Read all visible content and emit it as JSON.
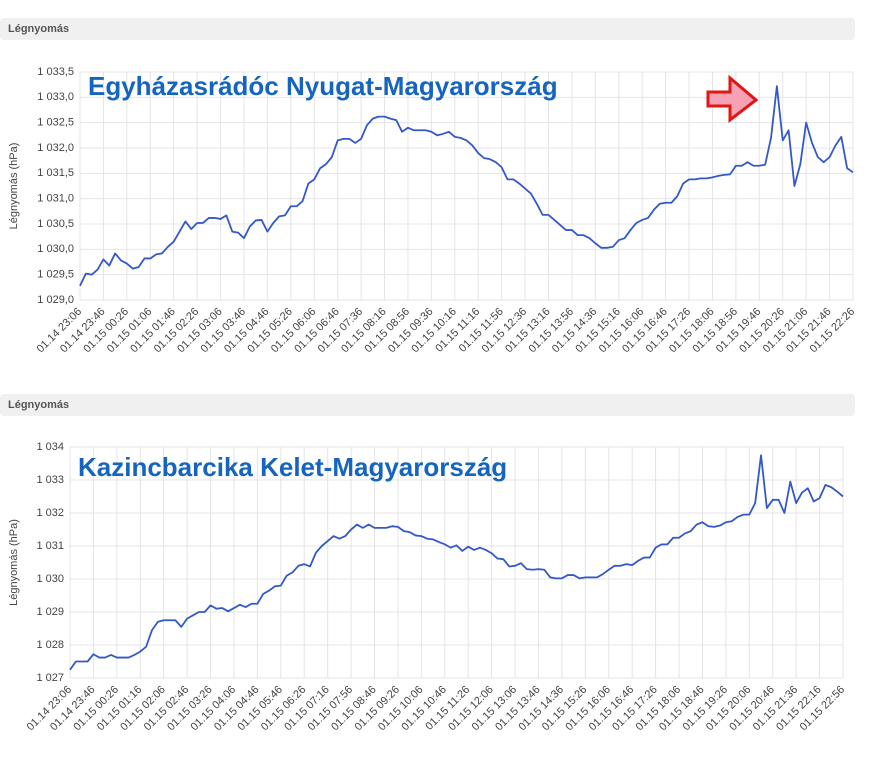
{
  "chart_data": [
    {
      "type": "line",
      "header": "Légnyomás",
      "title": "Egyházasrádóc Nyugat-Magyarország",
      "y_label": "Légnyomás (hPa)",
      "grid": true,
      "ylim": [
        1029.0,
        1033.5
      ],
      "yticks": [
        {
          "value": 1029.0,
          "label": "1 029,0"
        },
        {
          "value": 1029.5,
          "label": "1 029,5"
        },
        {
          "value": 1030.0,
          "label": "1 030,0"
        },
        {
          "value": 1030.5,
          "label": "1 030,5"
        },
        {
          "value": 1031.0,
          "label": "1 031,0"
        },
        {
          "value": 1031.5,
          "label": "1 031,5"
        },
        {
          "value": 1032.0,
          "label": "1 032,0"
        },
        {
          "value": 1032.5,
          "label": "1 032,5"
        },
        {
          "value": 1033.0,
          "label": "1 033,0"
        },
        {
          "value": 1033.5,
          "label": "1 033,5"
        }
      ],
      "categories": [
        "01.14 23:06",
        null,
        null,
        null,
        "01.14 23:46",
        null,
        null,
        null,
        "01.15 00:26",
        null,
        null,
        null,
        "01.15 01:06",
        null,
        null,
        null,
        "01.15 01:46",
        null,
        null,
        null,
        "01.15 02:26",
        null,
        null,
        null,
        "01.15 03:06",
        null,
        null,
        null,
        "01.15 03:46",
        null,
        null,
        null,
        "01.15 04:46",
        null,
        null,
        null,
        "01.15 05:26",
        null,
        null,
        null,
        "01.15 06:06",
        null,
        null,
        null,
        "01.15 06:46",
        null,
        null,
        null,
        "01.15 07:36",
        null,
        null,
        null,
        "01.15 08:16",
        null,
        null,
        null,
        "01.15 08:56",
        null,
        null,
        null,
        "01.15 09:36",
        null,
        null,
        null,
        "01.15 10:16",
        null,
        null,
        null,
        "01.15 11:16",
        null,
        null,
        null,
        "01.15 11:56",
        null,
        null,
        null,
        "01.15 12:36",
        null,
        null,
        null,
        "01.15 13:16",
        null,
        null,
        null,
        "01.15 13:56",
        null,
        null,
        null,
        "01.15 14:36",
        null,
        null,
        null,
        "01.15 15:16",
        null,
        null,
        null,
        "01.15 16:06",
        null,
        null,
        null,
        "01.15 16:46",
        null,
        null,
        null,
        "01.15 17:26",
        null,
        null,
        null,
        "01.15 18:06",
        null,
        null,
        null,
        "01.15 18:56",
        null,
        null,
        null,
        "01.15 19:46",
        null,
        null,
        null,
        "01.15 20:26",
        null,
        null,
        null,
        "01.15 21:06",
        null,
        null,
        null,
        "01.15 21:46",
        null,
        null,
        null,
        "01.15 22:26"
      ],
      "series": [
        {
          "color": "#3358c9",
          "values": [
            1029.28,
            1029.52,
            1029.5,
            1029.6,
            1029.8,
            1029.68,
            1029.92,
            1029.78,
            1029.72,
            1029.62,
            1029.65,
            1029.82,
            1029.82,
            1029.9,
            1029.92,
            1030.05,
            1030.15,
            1030.35,
            1030.55,
            1030.4,
            1030.52,
            1030.52,
            1030.62,
            1030.62,
            1030.6,
            1030.67,
            1030.35,
            1030.33,
            1030.22,
            1030.45,
            1030.57,
            1030.58,
            1030.35,
            1030.52,
            1030.65,
            1030.67,
            1030.85,
            1030.85,
            1030.95,
            1031.3,
            1031.38,
            1031.6,
            1031.68,
            1031.82,
            1032.15,
            1032.18,
            1032.18,
            1032.1,
            1032.18,
            1032.45,
            1032.58,
            1032.62,
            1032.62,
            1032.58,
            1032.55,
            1032.32,
            1032.4,
            1032.35,
            1032.35,
            1032.35,
            1032.32,
            1032.25,
            1032.28,
            1032.32,
            1032.22,
            1032.2,
            1032.15,
            1032.05,
            1031.9,
            1031.8,
            1031.78,
            1031.72,
            1031.62,
            1031.38,
            1031.38,
            1031.3,
            1031.2,
            1031.1,
            1030.9,
            1030.68,
            1030.68,
            1030.58,
            1030.48,
            1030.38,
            1030.38,
            1030.28,
            1030.28,
            1030.22,
            1030.12,
            1030.03,
            1030.03,
            1030.05,
            1030.18,
            1030.22,
            1030.38,
            1030.52,
            1030.58,
            1030.62,
            1030.78,
            1030.9,
            1030.92,
            1030.92,
            1031.05,
            1031.3,
            1031.38,
            1031.38,
            1031.4,
            1031.4,
            1031.42,
            1031.45,
            1031.47,
            1031.48,
            1031.65,
            1031.65,
            1031.72,
            1031.65,
            1031.65,
            1031.67,
            1032.2,
            1033.22,
            1032.15,
            1032.35,
            1031.25,
            1031.68,
            1032.5,
            1032.1,
            1031.82,
            1031.72,
            1031.82,
            1032.05,
            1032.22,
            1031.6,
            1031.52
          ]
        }
      ]
    },
    {
      "type": "line",
      "header": "Légnyomás",
      "title": "Kazincbarcika Kelet-Magyarország",
      "y_label": "Légnyomás (hPa)",
      "grid": true,
      "ylim": [
        1027,
        1034
      ],
      "yticks": [
        {
          "value": 1027,
          "label": "1 027"
        },
        {
          "value": 1028,
          "label": "1 028"
        },
        {
          "value": 1029,
          "label": "1 029"
        },
        {
          "value": 1030,
          "label": "1 030"
        },
        {
          "value": 1031,
          "label": "1 031"
        },
        {
          "value": 1032,
          "label": "1 032"
        },
        {
          "value": 1033,
          "label": "1 033"
        },
        {
          "value": 1034,
          "label": "1 034"
        }
      ],
      "categories": [
        "01.14 23:06",
        null,
        null,
        null,
        "01.14 23:46",
        null,
        null,
        null,
        "01.15 00:26",
        null,
        null,
        null,
        "01.15 01:16",
        null,
        null,
        null,
        "01.15 02:06",
        null,
        null,
        null,
        "01.15 02:46",
        null,
        null,
        null,
        "01.15 03:26",
        null,
        null,
        null,
        "01.15 04:06",
        null,
        null,
        null,
        "01.15 04:46",
        null,
        null,
        null,
        "01.15 05:46",
        null,
        null,
        null,
        "01.15 06:26",
        null,
        null,
        null,
        "01.15 07:16",
        null,
        null,
        null,
        "01.15 07:56",
        null,
        null,
        null,
        "01.15 08:46",
        null,
        null,
        null,
        "01.15 09:26",
        null,
        null,
        null,
        "01.15 10:06",
        null,
        null,
        null,
        "01.15 10:46",
        null,
        null,
        null,
        "01.15 11:26",
        null,
        null,
        null,
        "01.15 12:06",
        null,
        null,
        null,
        "01.15 13:06",
        null,
        null,
        null,
        "01.15 13:46",
        null,
        null,
        null,
        "01.15 14:36",
        null,
        null,
        null,
        "01.15 15:26",
        null,
        null,
        null,
        "01.15 16:06",
        null,
        null,
        null,
        "01.15 16:46",
        null,
        null,
        null,
        "01.15 17:26",
        null,
        null,
        null,
        "01.15 18:06",
        null,
        null,
        null,
        "01.15 18:46",
        null,
        null,
        null,
        "01.15 19:26",
        null,
        null,
        null,
        "01.15 20:06",
        null,
        null,
        null,
        "01.15 20:46",
        null,
        null,
        null,
        "01.15 21:36",
        null,
        null,
        null,
        "01.15 22:16",
        null,
        null,
        null,
        "01.15 22:56"
      ],
      "series": [
        {
          "color": "#3358c9",
          "values": [
            1027.25,
            1027.5,
            1027.5,
            1027.5,
            1027.72,
            1027.62,
            1027.62,
            1027.7,
            1027.62,
            1027.62,
            1027.62,
            1027.7,
            1027.8,
            1027.95,
            1028.45,
            1028.7,
            1028.75,
            1028.75,
            1028.75,
            1028.55,
            1028.8,
            1028.9,
            1029.0,
            1029.0,
            1029.2,
            1029.1,
            1029.12,
            1029.02,
            1029.12,
            1029.22,
            1029.15,
            1029.25,
            1029.25,
            1029.55,
            1029.65,
            1029.78,
            1029.8,
            1030.1,
            1030.2,
            1030.4,
            1030.45,
            1030.38,
            1030.8,
            1031.0,
            1031.15,
            1031.3,
            1031.22,
            1031.3,
            1031.5,
            1031.65,
            1031.55,
            1031.65,
            1031.55,
            1031.55,
            1031.55,
            1031.6,
            1031.58,
            1031.45,
            1031.42,
            1031.32,
            1031.3,
            1031.22,
            1031.2,
            1031.12,
            1031.05,
            1030.95,
            1031.02,
            1030.85,
            1030.98,
            1030.88,
            1030.95,
            1030.88,
            1030.78,
            1030.62,
            1030.6,
            1030.38,
            1030.4,
            1030.48,
            1030.3,
            1030.28,
            1030.3,
            1030.28,
            1030.05,
            1030.02,
            1030.02,
            1030.12,
            1030.12,
            1030.02,
            1030.05,
            1030.05,
            1030.05,
            1030.15,
            1030.28,
            1030.4,
            1030.4,
            1030.45,
            1030.42,
            1030.55,
            1030.65,
            1030.65,
            1030.95,
            1031.05,
            1031.05,
            1031.25,
            1031.25,
            1031.38,
            1031.45,
            1031.65,
            1031.72,
            1031.6,
            1031.58,
            1031.62,
            1031.72,
            1031.75,
            1031.88,
            1031.95,
            1031.95,
            1032.3,
            1033.75,
            1032.15,
            1032.4,
            1032.4,
            1032.0,
            1032.95,
            1032.3,
            1032.62,
            1032.75,
            1032.35,
            1032.45,
            1032.85,
            1032.78,
            1032.65,
            1032.5
          ]
        }
      ]
    }
  ]
}
